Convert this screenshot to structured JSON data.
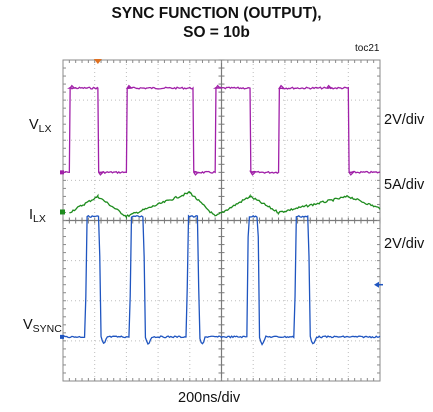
{
  "chart_data": {
    "type": "line",
    "title_line1": "SYNC FUNCTION (OUTPUT),",
    "title_line2": "SO = 10b",
    "figure_id": "toc21",
    "xlabel": "200ns/div",
    "grid": true,
    "divisions": {
      "horizontal": 10,
      "vertical": 8
    },
    "series": [
      {
        "name_main": "V",
        "name_sub": "LX",
        "scale": "2V/div",
        "color": "#a020a8",
        "waveform": "square",
        "high_div": 7.3,
        "low_div": 5.2,
        "rise_times_div": [
          0.2,
          2.0,
          4.8,
          6.8,
          8.3
        ],
        "fall_times_div": [
          1.1,
          4.1,
          5.9,
          9.0
        ]
      },
      {
        "name_main": "I",
        "name_sub": "LX",
        "scale": "5A/div",
        "color": "#1e8c1e",
        "waveform": "triangle",
        "peaks_div": [
          [
            0.2,
            4.2
          ],
          [
            1.1,
            4.6
          ],
          [
            2.0,
            4.1
          ],
          [
            4.0,
            4.7
          ],
          [
            4.8,
            4.1
          ],
          [
            5.9,
            4.6
          ],
          [
            6.8,
            4.2
          ],
          [
            9.0,
            4.6
          ],
          [
            10.0,
            4.3
          ]
        ]
      },
      {
        "name_main": "V",
        "name_sub": "SYNC",
        "scale": "2V/div",
        "color": "#1f55c0",
        "waveform": "pulse",
        "base_div": 1.1,
        "high_div": 4.1,
        "pulse_times_div": [
          [
            0.7,
            1.2
          ],
          [
            2.1,
            2.6
          ],
          [
            3.9,
            4.3
          ],
          [
            5.8,
            6.2
          ],
          [
            7.3,
            7.8
          ]
        ]
      }
    ],
    "markers": {
      "trigger_color": "#e07020",
      "level_color": "#1f55c0"
    }
  }
}
